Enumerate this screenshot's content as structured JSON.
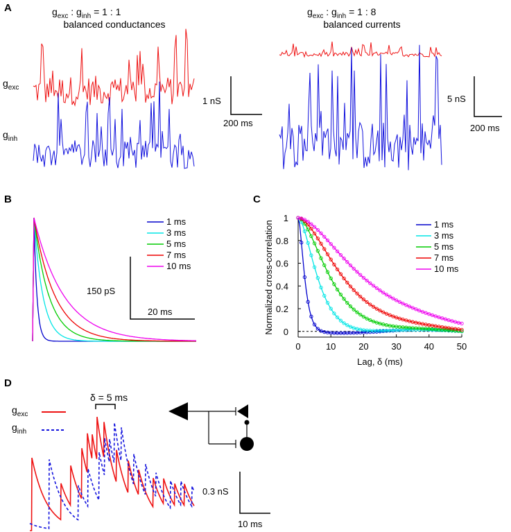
{
  "panels": {
    "a": "A",
    "b": "B",
    "c": "C",
    "d": "D"
  },
  "panel_a": {
    "left_ratio": {
      "g1": "g",
      "s1": "exc",
      "sep": " : ",
      "g2": "g",
      "s2": "inh",
      "val": " = 1 : 1"
    },
    "left_subtitle": "balanced conductances",
    "right_ratio": {
      "g1": "g",
      "s1": "exc",
      "sep": " : ",
      "g2": "g",
      "s2": "inh",
      "val": " = 1 : 8"
    },
    "right_subtitle": "balanced currents",
    "row_exc": {
      "g": "g",
      "sub": "exc"
    },
    "row_inh": {
      "g": "g",
      "sub": "inh"
    },
    "scale_left": {
      "v": "1 nS",
      "h": "200 ms"
    },
    "scale_right": {
      "v": "5 nS",
      "h": "200 ms"
    }
  },
  "panel_b": {
    "scale_v": "150 pS",
    "scale_h": "20 ms"
  },
  "panel_d": {
    "delta_label": "δ = 5 ms",
    "legend_exc": {
      "g": "g",
      "sub": "exc"
    },
    "legend_inh": {
      "g": "g",
      "sub": "inh"
    },
    "scale_v": "0.3 nS",
    "scale_h": "10 ms"
  },
  "colors": {
    "exc": "#ee1111",
    "inh": "#1111dd"
  },
  "chart_data": [
    {
      "type": "line",
      "panel": "B",
      "title": "",
      "description_values": "normalized alpha-like synaptic kernels",
      "series": [
        {
          "name": "1 ms",
          "tau": 1,
          "color": "#0000cc"
        },
        {
          "name": "3 ms",
          "tau": 3,
          "color": "#00e5e5"
        },
        {
          "name": "5 ms",
          "tau": 5,
          "color": "#00cc00"
        },
        {
          "name": "7 ms",
          "tau": 7,
          "color": "#ee0000"
        },
        {
          "name": "10 ms",
          "tau": 10,
          "color": "#ee00ee"
        }
      ],
      "xlim": [
        0,
        60
      ]
    },
    {
      "type": "line",
      "panel": "C",
      "xlabel": "Lag, δ (ms)",
      "ylabel": "Normalized cross-correlation",
      "xlim": [
        0,
        50
      ],
      "ylim": [
        -0.05,
        1
      ],
      "xticks": [
        0,
        10,
        20,
        30,
        40,
        50
      ],
      "yticks": [
        0,
        0.2,
        0.4,
        0.6,
        0.8,
        1
      ],
      "ytick_labels": [
        "0",
        "0.2",
        "0.4",
        "0.6",
        "0.8",
        "1"
      ],
      "series": [
        {
          "name": "1 ms",
          "tau": 1,
          "color": "#0000cc"
        },
        {
          "name": "3 ms",
          "tau": 3,
          "color": "#00e5e5"
        },
        {
          "name": "5 ms",
          "tau": 5,
          "color": "#00cc00"
        },
        {
          "name": "7 ms",
          "tau": 7,
          "color": "#ee0000"
        },
        {
          "name": "10 ms",
          "tau": 10,
          "color": "#ee00ee"
        }
      ]
    }
  ]
}
